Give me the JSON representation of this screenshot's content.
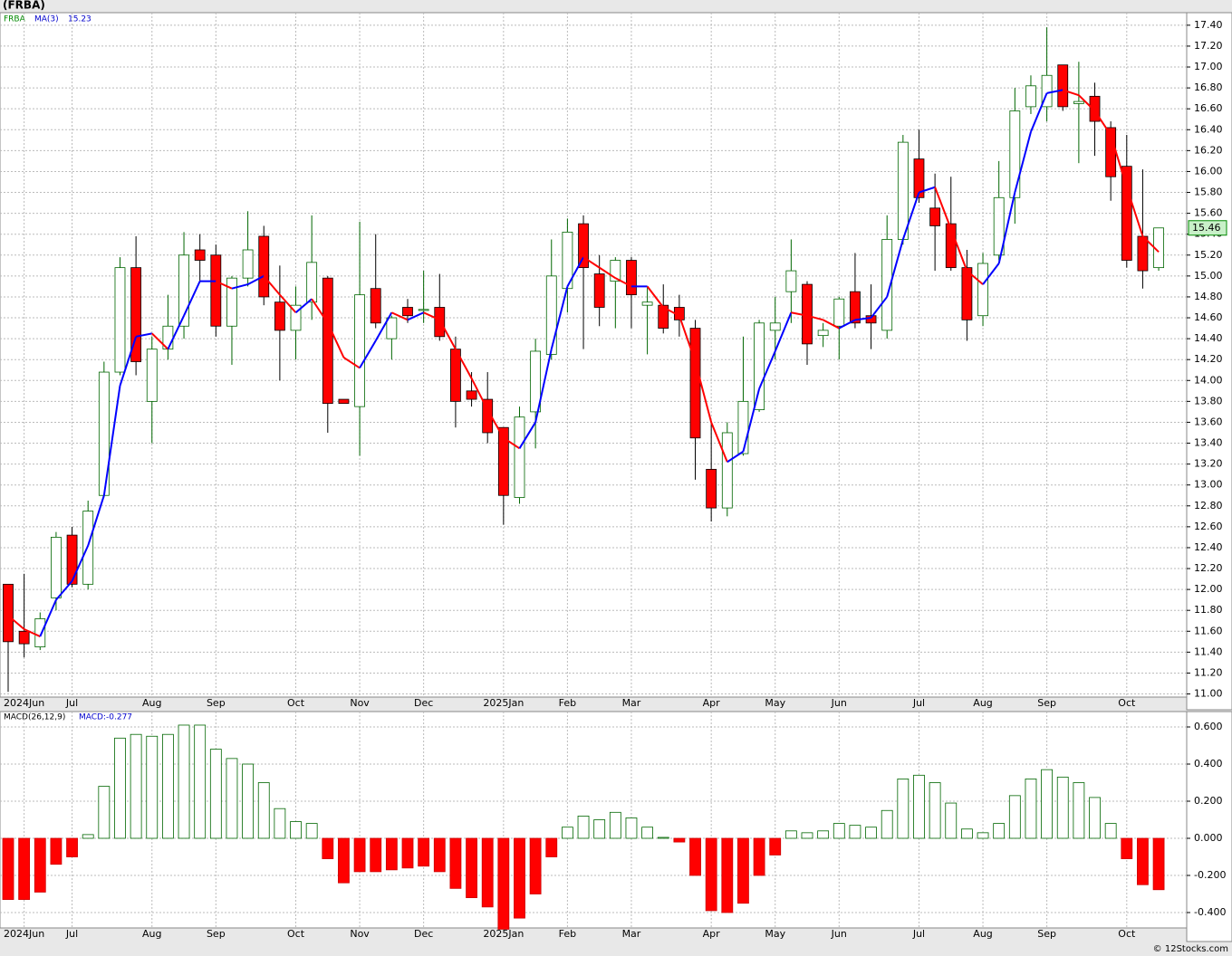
{
  "chart_data": [
    {
      "type": "candlestick",
      "title": "(FRBA)",
      "name": "FRBA",
      "up_color": "#ffffff",
      "down_color": "#ff0000",
      "grid": true,
      "categories": [
        null,
        "2024Jun",
        null,
        null,
        "Jul",
        null,
        null,
        null,
        null,
        "Aug",
        null,
        null,
        null,
        "Sep",
        null,
        null,
        null,
        null,
        "Oct",
        null,
        null,
        null,
        "Nov",
        null,
        null,
        null,
        "Dec",
        null,
        null,
        null,
        null,
        "2025Jan",
        null,
        null,
        null,
        "Feb",
        null,
        null,
        null,
        "Mar",
        null,
        null,
        null,
        null,
        "Apr",
        null,
        null,
        null,
        "May",
        null,
        null,
        null,
        "Jun",
        null,
        null,
        null,
        null,
        "Jul",
        null,
        null,
        null,
        "Aug",
        null,
        null,
        null,
        "Sep",
        null,
        null,
        null,
        null,
        "Oct",
        null,
        null
      ],
      "open": [
        12.05,
        11.6,
        11.45,
        11.92,
        12.52,
        12.05,
        12.9,
        14.08,
        15.08,
        13.8,
        14.3,
        14.52,
        15.25,
        15.2,
        14.52,
        14.98,
        15.38,
        14.75,
        14.48,
        14.75,
        14.98,
        13.82,
        13.75,
        14.88,
        14.4,
        14.7,
        14.67,
        14.7,
        14.3,
        13.9,
        13.82,
        13.55,
        12.88,
        13.7,
        14.25,
        14.88,
        15.5,
        15.02,
        14.95,
        15.15,
        14.72,
        14.72,
        14.7,
        14.5,
        13.15,
        12.78,
        13.3,
        13.72,
        14.48,
        14.85,
        14.92,
        14.43,
        14.52,
        14.85,
        14.62,
        14.48,
        15.35,
        16.12,
        15.65,
        15.5,
        15.08,
        14.62,
        15.2,
        15.75,
        16.62,
        16.62,
        17.02,
        16.65,
        16.72,
        16.42,
        16.05,
        15.38,
        15.08
      ],
      "high": [
        12.05,
        12.15,
        11.78,
        12.55,
        12.6,
        12.85,
        14.18,
        15.18,
        15.38,
        14.42,
        14.82,
        15.42,
        15.4,
        15.3,
        15.0,
        15.62,
        15.48,
        15.1,
        14.9,
        15.58,
        15.0,
        13.82,
        15.52,
        15.4,
        14.62,
        14.78,
        15.05,
        15.02,
        14.42,
        14.08,
        14.08,
        13.55,
        13.75,
        14.4,
        15.35,
        15.55,
        15.58,
        15.2,
        15.18,
        15.18,
        14.9,
        14.92,
        14.82,
        14.58,
        13.6,
        13.6,
        14.42,
        14.58,
        14.8,
        15.35,
        14.95,
        14.55,
        14.8,
        15.22,
        14.92,
        15.58,
        16.35,
        16.4,
        15.98,
        15.95,
        15.25,
        15.22,
        16.1,
        16.8,
        16.92,
        17.38,
        17.02,
        17.05,
        16.85,
        16.48,
        16.35,
        16.02,
        15.46
      ],
      "low": [
        11.02,
        11.35,
        11.42,
        11.8,
        12.02,
        12.0,
        12.88,
        14.05,
        14.05,
        13.4,
        14.2,
        14.4,
        14.95,
        14.42,
        14.15,
        14.9,
        14.72,
        14.0,
        14.2,
        14.58,
        13.5,
        13.78,
        13.28,
        14.5,
        14.2,
        14.55,
        14.55,
        14.38,
        13.55,
        13.75,
        13.4,
        12.62,
        12.82,
        13.35,
        14.2,
        14.65,
        14.3,
        14.52,
        14.5,
        14.5,
        14.25,
        14.45,
        14.42,
        13.05,
        12.65,
        12.7,
        13.28,
        13.7,
        14.2,
        14.55,
        14.15,
        14.32,
        14.2,
        14.5,
        14.3,
        14.4,
        15.3,
        15.7,
        15.05,
        15.05,
        14.38,
        14.52,
        15.15,
        15.5,
        16.55,
        16.48,
        16.58,
        16.08,
        16.15,
        15.72,
        15.08,
        14.88,
        15.05
      ],
      "close": [
        11.5,
        11.48,
        11.72,
        12.5,
        12.05,
        12.75,
        14.08,
        15.08,
        14.18,
        14.3,
        14.52,
        15.2,
        15.15,
        14.52,
        14.98,
        15.25,
        14.8,
        14.48,
        14.72,
        15.13,
        13.78,
        13.78,
        14.82,
        14.55,
        14.6,
        14.62,
        14.68,
        14.42,
        13.8,
        13.82,
        13.5,
        12.9,
        13.65,
        14.28,
        15.0,
        15.42,
        15.08,
        14.7,
        15.15,
        14.82,
        14.75,
        14.5,
        14.58,
        13.45,
        12.78,
        13.5,
        13.8,
        14.55,
        14.55,
        15.05,
        14.35,
        14.48,
        14.78,
        14.55,
        14.55,
        15.35,
        16.28,
        15.75,
        15.48,
        15.08,
        14.58,
        15.12,
        15.75,
        16.58,
        16.82,
        16.92,
        16.62,
        16.67,
        16.48,
        15.95,
        15.15,
        15.05,
        15.46
      ],
      "ma": {
        "name": "MA(3)",
        "up_color": "#0000ff",
        "down_color": "#ff0000",
        "values": [
          11.75,
          11.62,
          11.55,
          11.9,
          12.08,
          12.42,
          12.9,
          13.95,
          14.42,
          14.45,
          14.3,
          14.62,
          14.95,
          14.95,
          14.88,
          14.92,
          15.0,
          14.82,
          14.65,
          14.78,
          14.55,
          14.22,
          14.12,
          14.38,
          14.65,
          14.58,
          14.65,
          14.58,
          14.3,
          14.02,
          13.72,
          13.45,
          13.35,
          13.6,
          14.3,
          14.9,
          15.18,
          15.08,
          14.98,
          14.9,
          14.9,
          14.7,
          14.62,
          14.18,
          13.6,
          13.22,
          13.32,
          13.92,
          14.28,
          14.65,
          14.62,
          14.58,
          14.5,
          14.58,
          14.6,
          14.8,
          15.35,
          15.8,
          15.85,
          15.45,
          15.05,
          14.92,
          15.12,
          15.8,
          16.38,
          16.75,
          16.78,
          16.73,
          16.58,
          16.35,
          15.85,
          15.38,
          15.23
        ]
      },
      "ylim": [
        10.97,
        17.52
      ],
      "yticks": [
        {
          "value": 11,
          "label": "11.00"
        },
        {
          "value": 11.2,
          "label": "11.20"
        },
        {
          "value": 11.4,
          "label": "11.40"
        },
        {
          "value": 11.6,
          "label": "11.60"
        },
        {
          "value": 11.8,
          "label": "11.80"
        },
        {
          "value": 12,
          "label": "12.00"
        },
        {
          "value": 12.2,
          "label": "12.20"
        },
        {
          "value": 12.4,
          "label": "12.40"
        },
        {
          "value": 12.6,
          "label": "12.60"
        },
        {
          "value": 12.8,
          "label": "12.80"
        },
        {
          "value": 13,
          "label": "13.00"
        },
        {
          "value": 13.2,
          "label": "13.20"
        },
        {
          "value": 13.4,
          "label": "13.40"
        },
        {
          "value": 13.6,
          "label": "13.60"
        },
        {
          "value": 13.8,
          "label": "13.80"
        },
        {
          "value": 14,
          "label": "14.00"
        },
        {
          "value": 14.2,
          "label": "14.20"
        },
        {
          "value": 14.4,
          "label": "14.40"
        },
        {
          "value": 14.6,
          "label": "14.60"
        },
        {
          "value": 14.8,
          "label": "14.80"
        },
        {
          "value": 15,
          "label": "15.00"
        },
        {
          "value": 15.2,
          "label": "15.20"
        },
        {
          "value": 15.4,
          "label": "15.40"
        },
        {
          "value": 15.6,
          "label": "15.60"
        },
        {
          "value": 15.8,
          "label": "15.80"
        },
        {
          "value": 16,
          "label": "16.00"
        },
        {
          "value": 16.2,
          "label": "16.20"
        },
        {
          "value": 16.4,
          "label": "16.40"
        },
        {
          "value": 16.6,
          "label": "16.60"
        },
        {
          "value": 16.8,
          "label": "16.80"
        },
        {
          "value": 17,
          "label": "17.00"
        },
        {
          "value": 17.2,
          "label": "17.20"
        },
        {
          "value": 17.4,
          "label": "17.40"
        }
      ]
    },
    {
      "type": "bar",
      "title": "MACD(26,12,9)",
      "label": "MACD:-0.277",
      "up_color": "#ffffff",
      "down_color": "#ff0000",
      "grid": true,
      "values": [
        -0.33,
        -0.33,
        -0.29,
        -0.14,
        -0.1,
        0.02,
        0.28,
        0.54,
        0.56,
        0.55,
        0.56,
        0.61,
        0.61,
        0.48,
        0.43,
        0.4,
        0.3,
        0.16,
        0.09,
        0.08,
        -0.11,
        -0.24,
        -0.18,
        -0.18,
        -0.17,
        -0.16,
        -0.15,
        -0.18,
        -0.27,
        -0.32,
        -0.37,
        -0.49,
        -0.43,
        -0.3,
        -0.1,
        0.06,
        0.12,
        0.1,
        0.14,
        0.11,
        0.06,
        0.005,
        -0.02,
        -0.2,
        -0.39,
        -0.4,
        -0.35,
        -0.2,
        -0.09,
        0.04,
        0.03,
        0.04,
        0.08,
        0.07,
        0.06,
        0.15,
        0.32,
        0.34,
        0.3,
        0.19,
        0.05,
        0.03,
        0.08,
        0.23,
        0.32,
        0.37,
        0.33,
        0.3,
        0.22,
        0.08,
        -0.11,
        -0.25,
        -0.277
      ],
      "ylim": [
        -0.483,
        0.683
      ],
      "yticks": [
        {
          "value": -0.4,
          "label": "-0.400"
        },
        {
          "value": -0.2,
          "label": "-0.200"
        },
        {
          "value": 0,
          "label": "0.000"
        },
        {
          "value": 0.2,
          "label": "0.200"
        },
        {
          "value": 0.4,
          "label": "0.400"
        },
        {
          "value": 0.6,
          "label": "0.600"
        }
      ]
    }
  ],
  "footer": "© 12Stocks.com"
}
